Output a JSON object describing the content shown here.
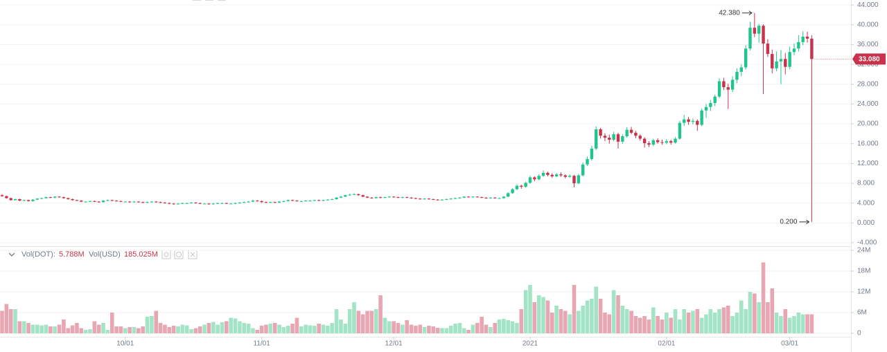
{
  "chart_data": {
    "type": "candlestick",
    "up_color": "#20c58c",
    "down_color": "#c8334b",
    "volume_up_color": "#a3e3c6",
    "volume_down_color": "#e8a6b3",
    "grid": true,
    "ylim": [
      -4.7,
      45
    ],
    "yticks": [
      {
        "value": 44,
        "label": "44.000"
      },
      {
        "value": 40,
        "label": "40.000"
      },
      {
        "value": 36,
        "label": "36.000"
      },
      {
        "value": 32,
        "label": "32.000"
      },
      {
        "value": 28,
        "label": "28.000"
      },
      {
        "value": 24,
        "label": "24.000"
      },
      {
        "value": 20,
        "label": "20.000"
      },
      {
        "value": 16,
        "label": "16.000"
      },
      {
        "value": 12,
        "label": "12.000"
      },
      {
        "value": 8,
        "label": "8.000"
      },
      {
        "value": 4,
        "label": "4.000"
      },
      {
        "value": 0,
        "label": "0.000"
      },
      {
        "value": -4,
        "label": "-4.000"
      }
    ],
    "high_label": {
      "value": 42.38,
      "label": "42.380"
    },
    "low_label": {
      "value": 0.2,
      "label": "0.200"
    },
    "last_price": {
      "value": 33.08,
      "label": "33.080"
    },
    "categories": [
      null,
      null,
      null,
      null,
      null,
      null,
      null,
      null,
      null,
      null,
      null,
      null,
      null,
      null,
      null,
      null,
      null,
      null,
      null,
      null,
      null,
      null,
      null,
      null,
      null,
      null,
      null,
      null,
      "10/01",
      null,
      null,
      null,
      null,
      null,
      null,
      null,
      null,
      null,
      null,
      null,
      null,
      null,
      null,
      null,
      null,
      null,
      null,
      null,
      null,
      null,
      null,
      null,
      null,
      null,
      null,
      null,
      null,
      null,
      null,
      "11/01",
      null,
      null,
      null,
      null,
      null,
      null,
      null,
      null,
      null,
      null,
      null,
      null,
      null,
      null,
      null,
      null,
      null,
      null,
      null,
      null,
      null,
      null,
      null,
      null,
      null,
      null,
      null,
      null,
      null,
      "12/01",
      null,
      null,
      null,
      null,
      null,
      null,
      null,
      null,
      null,
      null,
      null,
      null,
      null,
      null,
      null,
      null,
      null,
      null,
      null,
      null,
      null,
      null,
      null,
      null,
      null,
      null,
      null,
      null,
      null,
      null,
      "2021",
      null,
      null,
      null,
      null,
      null,
      null,
      null,
      null,
      null,
      null,
      null,
      null,
      null,
      null,
      null,
      null,
      null,
      null,
      null,
      null,
      null,
      null,
      null,
      null,
      null,
      null,
      null,
      null,
      null,
      null,
      "02/01",
      null,
      null,
      null,
      null,
      null,
      null,
      null,
      null,
      null,
      null,
      null,
      null,
      null,
      null,
      null,
      null,
      null,
      null,
      null,
      null,
      null,
      null,
      null,
      null,
      null,
      null,
      null,
      "03/01",
      null,
      null,
      null,
      null,
      null
    ],
    "candles": [
      [
        5.6,
        5.8,
        5.3,
        5.4
      ],
      [
        5.4,
        5.5,
        4.9,
        5.0
      ],
      [
        5.0,
        5.1,
        4.5,
        4.6
      ],
      [
        4.6,
        4.9,
        4.5,
        4.8
      ],
      [
        4.8,
        4.9,
        4.4,
        4.5
      ],
      [
        4.5,
        4.7,
        4.4,
        4.6
      ],
      [
        4.6,
        4.7,
        4.3,
        4.4
      ],
      [
        4.4,
        4.8,
        4.3,
        4.7
      ],
      [
        4.7,
        5.0,
        4.6,
        4.9
      ],
      [
        4.9,
        5.1,
        4.8,
        5.0
      ],
      [
        5.0,
        5.3,
        4.9,
        5.2
      ],
      [
        5.2,
        5.3,
        5.0,
        5.1
      ],
      [
        5.1,
        5.4,
        5.0,
        5.3
      ],
      [
        5.3,
        5.4,
        5.1,
        5.2
      ],
      [
        5.2,
        5.3,
        4.9,
        5.0
      ],
      [
        5.0,
        5.1,
        4.7,
        4.8
      ],
      [
        4.8,
        4.9,
        4.5,
        4.6
      ],
      [
        4.6,
        4.7,
        4.4,
        4.5
      ],
      [
        4.5,
        4.6,
        4.2,
        4.3
      ],
      [
        4.3,
        4.4,
        4.2,
        4.3
      ],
      [
        4.3,
        4.5,
        4.2,
        4.4
      ],
      [
        4.4,
        4.5,
        4.2,
        4.3
      ],
      [
        4.3,
        4.4,
        4.1,
        4.2
      ],
      [
        4.2,
        4.6,
        4.1,
        4.5
      ],
      [
        4.5,
        4.7,
        4.4,
        4.6
      ],
      [
        4.6,
        4.7,
        4.4,
        4.5
      ],
      [
        4.5,
        4.6,
        4.3,
        4.4
      ],
      [
        4.4,
        4.5,
        4.2,
        4.3
      ],
      [
        4.3,
        4.4,
        4.2,
        4.3
      ],
      [
        4.3,
        4.4,
        4.1,
        4.2
      ],
      [
        4.2,
        4.4,
        4.1,
        4.3
      ],
      [
        4.3,
        4.4,
        4.1,
        4.2
      ],
      [
        4.2,
        4.3,
        4.0,
        4.1
      ],
      [
        4.1,
        4.3,
        4.0,
        4.2
      ],
      [
        4.2,
        4.4,
        4.1,
        4.3
      ],
      [
        4.3,
        4.4,
        4.1,
        4.2
      ],
      [
        4.2,
        4.3,
        4.0,
        4.1
      ],
      [
        4.1,
        4.2,
        3.9,
        4.0
      ],
      [
        4.0,
        4.1,
        3.8,
        3.9
      ],
      [
        3.9,
        4.0,
        3.7,
        3.8
      ],
      [
        3.8,
        4.0,
        3.7,
        3.9
      ],
      [
        3.9,
        4.1,
        3.8,
        4.0
      ],
      [
        4.0,
        4.1,
        3.9,
        4.0
      ],
      [
        4.0,
        4.2,
        3.9,
        4.1
      ],
      [
        4.1,
        4.2,
        3.9,
        4.0
      ],
      [
        4.0,
        4.1,
        3.8,
        3.9
      ],
      [
        3.9,
        4.0,
        3.8,
        3.9
      ],
      [
        3.9,
        4.0,
        3.7,
        3.8
      ],
      [
        3.8,
        4.0,
        3.7,
        3.9
      ],
      [
        3.9,
        4.1,
        3.8,
        4.0
      ],
      [
        4.0,
        4.1,
        3.9,
        4.0
      ],
      [
        4.0,
        4.1,
        3.8,
        3.9
      ],
      [
        3.9,
        4.0,
        3.8,
        3.9
      ],
      [
        3.9,
        4.1,
        3.8,
        4.0
      ],
      [
        4.0,
        4.2,
        3.9,
        4.1
      ],
      [
        4.1,
        4.3,
        4.0,
        4.2
      ],
      [
        4.2,
        4.4,
        4.1,
        4.3
      ],
      [
        4.3,
        4.7,
        4.2,
        4.5
      ],
      [
        4.5,
        4.6,
        4.3,
        4.4
      ],
      [
        4.4,
        4.5,
        4.1,
        4.2
      ],
      [
        4.2,
        4.3,
        4.0,
        4.1
      ],
      [
        4.1,
        4.3,
        4.0,
        4.2
      ],
      [
        4.2,
        4.3,
        4.0,
        4.1
      ],
      [
        4.1,
        4.4,
        4.0,
        4.3
      ],
      [
        4.3,
        4.5,
        4.2,
        4.4
      ],
      [
        4.4,
        4.7,
        4.3,
        4.6
      ],
      [
        4.6,
        4.7,
        4.4,
        4.5
      ],
      [
        4.5,
        4.6,
        4.3,
        4.4
      ],
      [
        4.4,
        4.5,
        4.3,
        4.4
      ],
      [
        4.4,
        4.6,
        4.3,
        4.5
      ],
      [
        4.5,
        4.6,
        4.4,
        4.5
      ],
      [
        4.5,
        4.7,
        4.4,
        4.6
      ],
      [
        4.6,
        4.7,
        4.4,
        4.5
      ],
      [
        4.5,
        4.7,
        4.4,
        4.6
      ],
      [
        4.6,
        4.8,
        4.5,
        4.7
      ],
      [
        4.7,
        4.9,
        4.6,
        4.8
      ],
      [
        4.8,
        5.2,
        4.7,
        5.1
      ],
      [
        5.1,
        5.4,
        5.0,
        5.3
      ],
      [
        5.3,
        5.7,
        5.2,
        5.6
      ],
      [
        5.6,
        5.9,
        5.5,
        5.7
      ],
      [
        5.7,
        6.0,
        5.6,
        5.8
      ],
      [
        5.8,
        5.9,
        5.5,
        5.6
      ],
      [
        5.6,
        5.7,
        5.2,
        5.3
      ],
      [
        5.3,
        5.4,
        5.0,
        5.1
      ],
      [
        5.1,
        5.2,
        4.9,
        5.0
      ],
      [
        5.0,
        5.3,
        4.9,
        5.2
      ],
      [
        5.2,
        5.3,
        5.0,
        5.1
      ],
      [
        5.1,
        5.3,
        5.0,
        5.2
      ],
      [
        5.2,
        5.4,
        5.1,
        5.3
      ],
      [
        5.3,
        5.4,
        5.1,
        5.2
      ],
      [
        5.2,
        5.3,
        5.0,
        5.1
      ],
      [
        5.1,
        5.3,
        5.0,
        5.2
      ],
      [
        5.2,
        5.3,
        5.0,
        5.1
      ],
      [
        5.1,
        5.2,
        4.9,
        5.0
      ],
      [
        5.0,
        5.1,
        4.8,
        4.9
      ],
      [
        4.9,
        5.0,
        4.7,
        4.8
      ],
      [
        4.8,
        5.0,
        4.7,
        4.9
      ],
      [
        4.9,
        5.0,
        4.7,
        4.8
      ],
      [
        4.8,
        4.9,
        4.6,
        4.7
      ],
      [
        4.7,
        4.8,
        4.5,
        4.6
      ],
      [
        4.6,
        4.8,
        4.5,
        4.7
      ],
      [
        4.7,
        4.9,
        4.6,
        4.8
      ],
      [
        4.8,
        5.0,
        4.7,
        4.9
      ],
      [
        4.9,
        5.1,
        4.8,
        5.0
      ],
      [
        5.0,
        5.2,
        4.9,
        5.1
      ],
      [
        5.1,
        5.4,
        5.0,
        5.3
      ],
      [
        5.3,
        5.4,
        5.1,
        5.2
      ],
      [
        5.2,
        5.4,
        5.1,
        5.3
      ],
      [
        5.3,
        5.4,
        5.1,
        5.2
      ],
      [
        5.2,
        5.3,
        5.0,
        5.1
      ],
      [
        5.1,
        5.2,
        4.9,
        5.0
      ],
      [
        5.0,
        5.2,
        4.9,
        5.1
      ],
      [
        5.1,
        5.2,
        4.9,
        5.0
      ],
      [
        5.0,
        5.1,
        4.9,
        5.0
      ],
      [
        5.0,
        5.4,
        4.9,
        5.3
      ],
      [
        5.3,
        6.2,
        5.2,
        6.0
      ],
      [
        6.0,
        7.0,
        5.9,
        6.8
      ],
      [
        6.8,
        7.8,
        6.6,
        7.5
      ],
      [
        7.5,
        7.7,
        6.9,
        7.3
      ],
      [
        7.3,
        8.3,
        7.1,
        8.1
      ],
      [
        8.1,
        9.5,
        7.9,
        9.2
      ],
      [
        9.2,
        9.4,
        8.4,
        8.8
      ],
      [
        8.8,
        9.8,
        8.6,
        9.5
      ],
      [
        9.5,
        10.6,
        9.3,
        10.1
      ],
      [
        10.1,
        10.4,
        9.4,
        9.7
      ],
      [
        9.7,
        10.0,
        9.1,
        9.4
      ],
      [
        9.4,
        10.1,
        9.2,
        9.8
      ],
      [
        9.8,
        10.2,
        9.3,
        9.6
      ],
      [
        9.6,
        9.8,
        9.0,
        9.3
      ],
      [
        9.3,
        9.8,
        9.1,
        9.5
      ],
      [
        9.5,
        9.7,
        7.2,
        8.0
      ],
      [
        8.0,
        9.9,
        7.8,
        9.6
      ],
      [
        9.6,
        12.2,
        9.4,
        11.8
      ],
      [
        11.8,
        13.4,
        11.5,
        12.9
      ],
      [
        12.9,
        15.6,
        12.6,
        15.0
      ],
      [
        15.0,
        19.5,
        14.7,
        18.9
      ],
      [
        18.9,
        19.2,
        17.0,
        17.6
      ],
      [
        17.6,
        18.1,
        16.5,
        17.2
      ],
      [
        17.2,
        17.8,
        16.0,
        16.8
      ],
      [
        16.8,
        18.4,
        16.5,
        17.9
      ],
      [
        17.9,
        18.2,
        15.0,
        16.4
      ],
      [
        16.4,
        17.9,
        16.0,
        17.5
      ],
      [
        17.5,
        19.3,
        17.2,
        18.8
      ],
      [
        18.8,
        19.4,
        17.9,
        18.2
      ],
      [
        18.2,
        18.6,
        17.1,
        17.6
      ],
      [
        17.6,
        17.9,
        16.6,
        17.0
      ],
      [
        17.0,
        17.3,
        15.2,
        16.1
      ],
      [
        16.1,
        16.5,
        15.3,
        15.8
      ],
      [
        15.8,
        17.0,
        15.5,
        16.7
      ],
      [
        16.7,
        17.1,
        16.0,
        16.3
      ],
      [
        16.3,
        16.8,
        15.8,
        16.2
      ],
      [
        16.2,
        16.9,
        15.9,
        16.5
      ],
      [
        16.5,
        16.8,
        15.8,
        16.2
      ],
      [
        16.2,
        17.3,
        16.0,
        17.0
      ],
      [
        17.0,
        20.6,
        16.8,
        20.2
      ],
      [
        20.2,
        21.8,
        19.6,
        20.9
      ],
      [
        20.9,
        21.4,
        19.8,
        20.4
      ],
      [
        20.4,
        21.1,
        19.9,
        20.6
      ],
      [
        20.6,
        20.9,
        18.6,
        19.8
      ],
      [
        19.8,
        23.1,
        19.5,
        22.7
      ],
      [
        22.7,
        24.0,
        21.2,
        23.4
      ],
      [
        23.4,
        24.8,
        22.6,
        24.2
      ],
      [
        24.2,
        25.9,
        23.6,
        25.5
      ],
      [
        25.5,
        29.2,
        25.2,
        28.6
      ],
      [
        28.6,
        29.3,
        26.8,
        27.4
      ],
      [
        27.4,
        28.1,
        23.0,
        26.9
      ],
      [
        26.9,
        29.6,
        26.4,
        28.9
      ],
      [
        28.9,
        31.2,
        28.2,
        30.5
      ],
      [
        30.5,
        32.0,
        29.6,
        31.4
      ],
      [
        31.4,
        35.9,
        31.0,
        35.2
      ],
      [
        35.2,
        40.6,
        34.8,
        39.4
      ],
      [
        39.4,
        42.38,
        37.5,
        38.2
      ],
      [
        38.2,
        40.2,
        36.4,
        39.8
      ],
      [
        39.8,
        40.1,
        26.0,
        36.2
      ],
      [
        36.2,
        37.1,
        33.5,
        34.1
      ],
      [
        34.1,
        35.0,
        30.2,
        31.2
      ],
      [
        31.2,
        34.6,
        30.6,
        32.6
      ],
      [
        32.6,
        34.9,
        28.0,
        33.1
      ],
      [
        33.1,
        34.3,
        30.0,
        31.5
      ],
      [
        31.5,
        35.6,
        31.0,
        34.5
      ],
      [
        34.5,
        36.2,
        33.8,
        35.2
      ],
      [
        35.2,
        37.9,
        34.6,
        36.5
      ],
      [
        36.5,
        38.7,
        35.9,
        37.6
      ],
      [
        37.6,
        38.6,
        36.4,
        37.2
      ],
      [
        37.2,
        37.9,
        0.2,
        33.08
      ]
    ],
    "volume": {
      "legend": [
        "Vol(DOT):",
        "5.788M",
        "Vol(USD)",
        "185.025M"
      ],
      "ylim": [
        -1,
        25
      ],
      "yticks": [
        {
          "value": 24,
          "label": "24M"
        },
        {
          "value": 18,
          "label": "18M"
        },
        {
          "value": 12,
          "label": "12M"
        },
        {
          "value": 6,
          "label": "6M"
        },
        0
      ],
      "values": [
        6.5,
        8.5,
        7,
        7,
        3.5,
        3.5,
        3,
        2.5,
        2.5,
        2.3,
        2.5,
        2,
        2,
        2.5,
        4,
        1.5,
        2.3,
        3,
        1.5,
        1,
        1.2,
        3.5,
        2.5,
        3,
        1,
        6,
        2,
        2,
        1.5,
        1.8,
        1.8,
        1.5,
        2,
        4.8,
        5,
        6.5,
        3,
        2.5,
        1.8,
        2.2,
        2,
        2.5,
        2.3,
        1.2,
        1.5,
        2,
        2.5,
        3,
        3.3,
        2.5,
        3.2,
        3.5,
        4.5,
        4.3,
        3.5,
        3,
        2.8,
        1.5,
        1,
        2.2,
        2.5,
        2.8,
        3,
        2.5,
        1.8,
        2.2,
        2.8,
        4.5,
        2,
        2.5,
        2.3,
        2.2,
        2.8,
        2.5,
        2.2,
        3,
        7,
        4,
        2.8,
        7,
        9,
        6.5,
        5.5,
        6.5,
        6.5,
        7,
        11,
        4.5,
        3.5,
        3.5,
        3,
        2.5,
        3.8,
        2.5,
        2.2,
        2.5,
        1.8,
        2.2,
        2,
        1.6,
        1.5,
        1.5,
        2.2,
        2.8,
        3,
        1.5,
        1,
        2.5,
        3,
        4.8,
        2.5,
        1.8,
        3,
        4,
        4.2,
        3.8,
        3.5,
        3,
        7,
        12.5,
        14,
        9,
        11,
        10.5,
        9.5,
        6,
        8,
        7,
        6.5,
        5.5,
        14,
        6.5,
        8,
        9.5,
        10,
        13.5,
        10,
        6,
        5.5,
        12.5,
        11,
        8,
        7,
        6.5,
        5,
        4.5,
        5,
        4,
        7.5,
        5,
        4,
        6,
        4.5,
        7,
        4,
        7,
        6,
        6.5,
        7,
        4.5,
        5.5,
        7,
        6,
        7,
        7.5,
        8,
        5,
        6,
        9.5,
        7,
        12,
        11.5,
        9,
        20.5,
        9,
        13,
        6,
        5,
        7,
        4.5,
        5,
        6,
        5.5,
        5.5,
        5.5
      ]
    }
  }
}
